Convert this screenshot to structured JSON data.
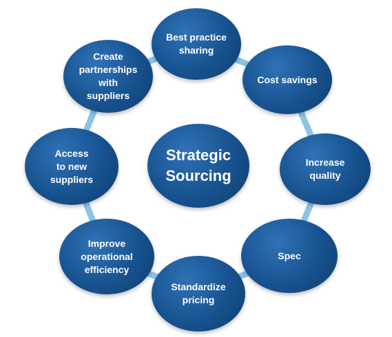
{
  "center": {
    "label": "Strategic\nSourcing"
  },
  "nodes": [
    {
      "label": "Best practice\nsharing"
    },
    {
      "label": "Cost savings"
    },
    {
      "label": "Increase\nquality"
    },
    {
      "label": "Spec"
    },
    {
      "label": "Standardize\npricing"
    },
    {
      "label": "Improve\noperational\nefficiency"
    },
    {
      "label": "Access\nto new\nsuppliers"
    },
    {
      "label": "Create\npartnerships\nwith\nsuppliers"
    }
  ],
  "colors": {
    "node": "#17528f",
    "connector": "#8cc4e4"
  }
}
